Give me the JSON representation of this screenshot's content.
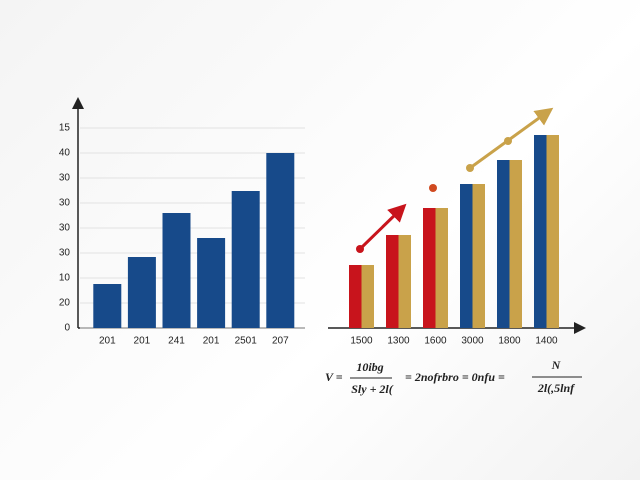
{
  "chart_data": [
    {
      "type": "bar",
      "color": "#174a8a",
      "categories": [
        "201",
        "201",
        "241",
        "201",
        "2501",
        "207"
      ],
      "values": [
        8.8,
        14.2,
        23,
        18,
        27.4,
        35
      ],
      "ylim": [
        0,
        45
      ],
      "yticks": [
        0,
        {
          "value": 5,
          "label": "20"
        },
        {
          "value": 10,
          "label": "10"
        },
        {
          "value": 15,
          "label": "30"
        },
        {
          "value": 20,
          "label": "30"
        },
        {
          "value": 25,
          "label": "30"
        },
        {
          "value": 30,
          "label": "30"
        },
        {
          "value": 35,
          "label": "40"
        },
        {
          "value": 40,
          "label": "15"
        }
      ],
      "grid": true
    },
    {
      "type": "paired-bar",
      "categories": [
        "1500",
        "1300",
        "1600",
        "3000",
        "1800",
        "1400"
      ],
      "ylim": [
        0,
        45
      ],
      "series": [
        {
          "colors": [
            "#c8141c",
            "#c8141c",
            "#c8141c",
            "#174a8a",
            "#174a8a",
            "#174a8a"
          ],
          "values": [
            12.6,
            18.6,
            24,
            28.8,
            33.6,
            38.6
          ]
        },
        {
          "color": "#c9a24a",
          "values": [
            12.6,
            18.6,
            24,
            28.8,
            33.6,
            38.6
          ]
        }
      ]
    }
  ],
  "formula": {
    "lhs": "V =",
    "num1": "10ibg",
    "den1": "Sly + 2l(",
    "mid": "= 2nofrbro = 0nfu =",
    "num2": "N",
    "den2": "2l(,5lnf"
  }
}
